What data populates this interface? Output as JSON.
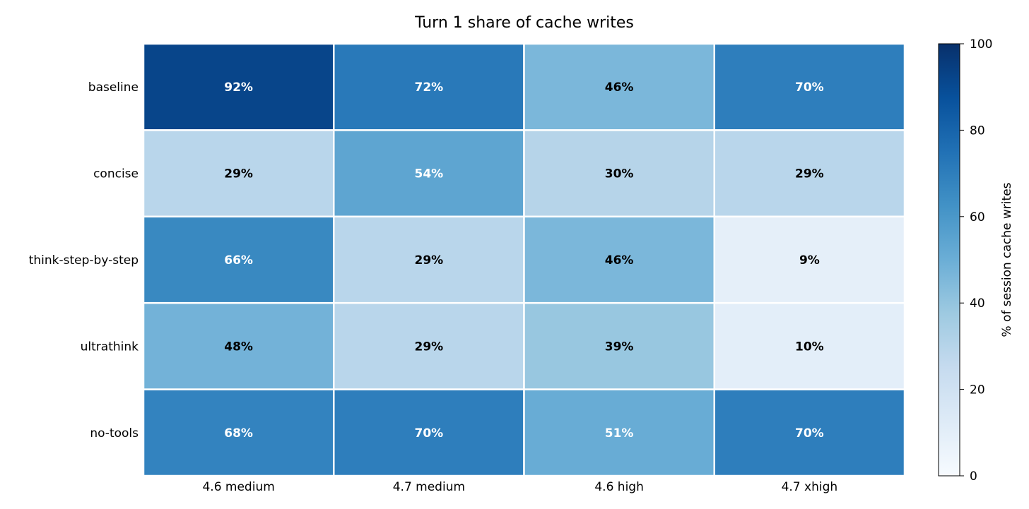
{
  "chart_data": {
    "type": "heatmap",
    "title": "Turn 1 share of cache writes",
    "rows": [
      "baseline",
      "concise",
      "think-step-by-step",
      "ultrathink",
      "no-tools"
    ],
    "columns": [
      "4.6 medium",
      "4.7 medium",
      "4.6 high",
      "4.7 xhigh"
    ],
    "values": [
      [
        92,
        72,
        46,
        70
      ],
      [
        29,
        54,
        30,
        29
      ],
      [
        66,
        29,
        46,
        9
      ],
      [
        48,
        29,
        39,
        10
      ],
      [
        68,
        70,
        51,
        70
      ]
    ],
    "cell_labels": [
      [
        "92%",
        "72%",
        "46%",
        "70%"
      ],
      [
        "29%",
        "54%",
        "30%",
        "29%"
      ],
      [
        "66%",
        "29%",
        "46%",
        "9%"
      ],
      [
        "48%",
        "29%",
        "39%",
        "10%"
      ],
      [
        "68%",
        "70%",
        "51%",
        "70%"
      ]
    ],
    "colorbar": {
      "label": "% of session cache writes",
      "range": [
        0,
        100
      ],
      "ticks": [
        0,
        20,
        40,
        60,
        80,
        100
      ],
      "colormap": "Blues",
      "color_stops": [
        "#f7fbff",
        "#deebf7",
        "#c6dbef",
        "#9ecae1",
        "#6baed6",
        "#4292c6",
        "#2171b5",
        "#08519c",
        "#08306b"
      ]
    },
    "label_colors": {
      "dark_text": "#000000",
      "light_text": "#ffffff"
    },
    "grid_line_color": "#ffffff"
  }
}
